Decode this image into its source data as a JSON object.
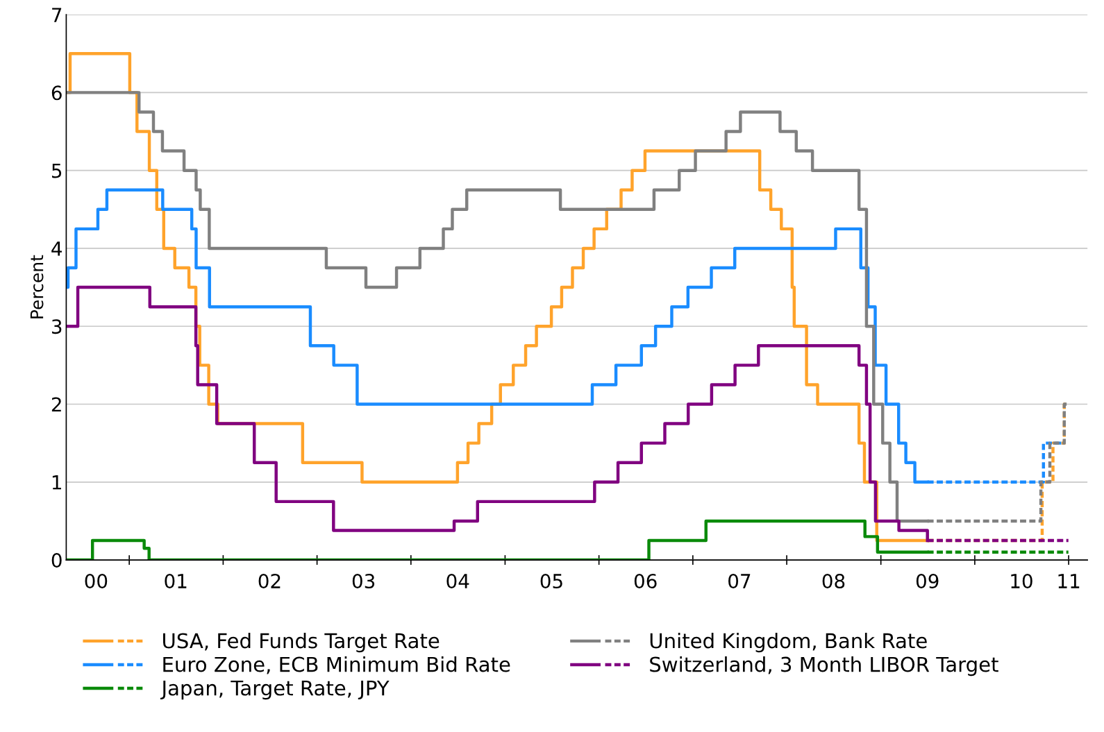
{
  "chart_data": {
    "type": "step",
    "ylabel": "Percent",
    "xlim": [
      "2000-05-01",
      "2011-03-15"
    ],
    "ylim": [
      0,
      7
    ],
    "yticks": [
      0,
      1,
      2,
      3,
      4,
      5,
      6,
      7
    ],
    "xticks": [
      {
        "value": "2001-01-01",
        "label": null
      },
      {
        "value": "2002-01-01",
        "label": null
      },
      {
        "value": "2003-01-01",
        "label": null
      },
      {
        "value": "2004-01-01",
        "label": null
      },
      {
        "value": "2005-01-01",
        "label": null
      },
      {
        "value": "2006-01-01",
        "label": null
      },
      {
        "value": "2007-01-01",
        "label": null
      },
      {
        "value": "2008-01-01",
        "label": null
      },
      {
        "value": "2009-01-01",
        "label": null
      },
      {
        "value": "2010-01-01",
        "label": null
      },
      {
        "value": "2011-01-01",
        "label": null
      },
      {
        "value": "2000-08-25",
        "label": "00"
      },
      {
        "value": "2001-07-01",
        "label": "01"
      },
      {
        "value": "2002-07-01",
        "label": "02"
      },
      {
        "value": "2003-07-01",
        "label": "03"
      },
      {
        "value": "2004-07-01",
        "label": "04"
      },
      {
        "value": "2005-07-01",
        "label": "05"
      },
      {
        "value": "2006-07-01",
        "label": "06"
      },
      {
        "value": "2007-07-01",
        "label": "07"
      },
      {
        "value": "2008-07-01",
        "label": "08"
      },
      {
        "value": "2009-07-01",
        "label": "09"
      },
      {
        "value": "2010-07-01",
        "label": "10"
      },
      {
        "value": "2011-01-01",
        "label": "11"
      }
    ],
    "grid": "y",
    "legend": "bottom",
    "series": [
      {
        "name": "USA, Fed Funds Target Rate",
        "color": "#ffa32b",
        "line_style": "solid",
        "x": [
          "2000-05-01",
          "2000-05-16",
          "2001-01-03",
          "2001-01-31",
          "2001-03-20",
          "2001-04-18",
          "2001-05-15",
          "2001-06-27",
          "2001-08-21",
          "2001-09-17",
          "2001-10-02",
          "2001-11-06",
          "2001-12-11",
          "2002-11-06",
          "2003-06-25",
          "2004-06-30",
          "2004-08-10",
          "2004-09-21",
          "2004-11-10",
          "2004-12-14",
          "2005-02-02",
          "2005-03-22",
          "2005-05-03",
          "2005-06-30",
          "2005-08-09",
          "2005-09-20",
          "2005-11-01",
          "2005-12-13",
          "2006-01-31",
          "2006-03-28",
          "2006-05-10",
          "2006-06-29",
          "2007-09-18",
          "2007-10-31",
          "2007-12-11",
          "2008-01-22",
          "2008-01-30",
          "2008-03-18",
          "2008-04-30",
          "2008-10-08",
          "2008-10-29",
          "2008-12-16",
          "2009-07-01"
        ],
        "values": [
          6,
          6.5,
          6,
          5.5,
          5,
          4.5,
          4,
          3.75,
          3.5,
          3,
          2.5,
          2,
          1.75,
          1.25,
          1,
          1.25,
          1.5,
          1.75,
          2,
          2.25,
          2.5,
          2.75,
          3,
          3.25,
          3.5,
          3.75,
          4,
          4.25,
          4.5,
          4.75,
          5,
          5.25,
          4.75,
          4.5,
          4.25,
          3.5,
          3,
          2.25,
          2,
          1.5,
          1,
          0.25,
          0.25
        ]
      },
      {
        "color": "#ffa32b",
        "line_style": "dashed",
        "x": [
          "2009-07-01",
          "2010-09-20",
          "2010-11-01",
          "2010-12-15",
          "2010-12-31"
        ],
        "values": [
          0.25,
          1,
          1.5,
          2,
          2
        ]
      },
      {
        "name": "Euro Zone, ECB Minimum Bid Rate",
        "color": "#1a8cff",
        "line_style": "solid",
        "x": [
          "2000-05-01",
          "2000-05-08",
          "2000-06-08",
          "2000-09-01",
          "2000-10-06",
          "2001-05-11",
          "2001-09-01",
          "2001-09-18",
          "2001-11-09",
          "2002-12-06",
          "2003-03-07",
          "2003-06-06",
          "2005-12-06",
          "2006-03-08",
          "2006-06-15",
          "2006-08-09",
          "2006-10-11",
          "2006-12-13",
          "2007-03-14",
          "2007-06-13",
          "2008-07-09",
          "2008-10-15",
          "2008-11-12",
          "2008-12-10",
          "2009-01-21",
          "2009-03-11",
          "2009-04-08",
          "2009-05-13",
          "2009-07-01"
        ],
        "values": [
          3.5,
          3.75,
          4.25,
          4.5,
          4.75,
          4.5,
          4.25,
          3.75,
          3.25,
          2.75,
          2.5,
          2,
          2.25,
          2.5,
          2.75,
          3,
          3.25,
          3.5,
          3.75,
          4,
          4.25,
          3.75,
          3.25,
          2.5,
          2,
          1.5,
          1.25,
          1,
          1
        ]
      },
      {
        "color": "#1a8cff",
        "line_style": "dashed",
        "x": [
          "2009-07-01",
          "2010-09-25",
          "2010-12-15"
        ],
        "values": [
          1,
          1.5,
          1.5
        ]
      },
      {
        "name": "Japan, Target Rate, JPY",
        "color": "#0a8a0a",
        "line_style": "solid",
        "x": [
          "2000-05-01",
          "2000-08-11",
          "2001-02-28",
          "2001-03-19",
          "2006-07-14",
          "2007-02-21",
          "2008-10-31",
          "2008-12-19",
          "2009-07-01"
        ],
        "values": [
          0,
          0.25,
          0.15,
          0,
          0.25,
          0.5,
          0.3,
          0.1,
          0.1
        ]
      },
      {
        "color": "#0a8a0a",
        "line_style": "dashed",
        "x": [
          "2009-07-01",
          "2010-12-31"
        ],
        "values": [
          0.1,
          0.1
        ]
      },
      {
        "name": "United Kingdom, Bank Rate",
        "color": "#808080",
        "line_style": "solid",
        "x": [
          "2000-05-01",
          "2001-02-08",
          "2001-04-05",
          "2001-05-10",
          "2001-08-02",
          "2001-09-18",
          "2001-10-04",
          "2001-11-08",
          "2003-02-06",
          "2003-07-10",
          "2003-11-06",
          "2004-02-05",
          "2004-05-06",
          "2004-06-10",
          "2004-08-05",
          "2005-08-04",
          "2006-08-03",
          "2006-11-09",
          "2007-01-11",
          "2007-05-10",
          "2007-07-05",
          "2007-12-06",
          "2008-02-07",
          "2008-04-10",
          "2008-10-08",
          "2008-11-06",
          "2008-12-04",
          "2009-01-08",
          "2009-02-05",
          "2009-03-05",
          "2009-07-01"
        ],
        "values": [
          6,
          5.75,
          5.5,
          5.25,
          5,
          4.75,
          4.5,
          4,
          3.75,
          3.5,
          3.75,
          4,
          4.25,
          4.5,
          4.75,
          4.5,
          4.75,
          5,
          5.25,
          5.5,
          5.75,
          5.5,
          5.25,
          5,
          4.5,
          3,
          2,
          1.5,
          1,
          0.5,
          0.5
        ]
      },
      {
        "color": "#808080",
        "line_style": "dashed",
        "x": [
          "2009-07-01",
          "2010-09-15",
          "2010-10-20",
          "2010-12-15",
          "2010-12-31"
        ],
        "values": [
          0.5,
          1,
          1.5,
          2,
          2
        ]
      },
      {
        "name": "Switzerland, 3 Month LIBOR Target",
        "color": "#800080",
        "line_style": "solid",
        "x": [
          "2000-05-01",
          "2000-06-15",
          "2001-03-22",
          "2001-09-17",
          "2001-09-24",
          "2001-12-07",
          "2002-05-02",
          "2002-07-26",
          "2003-03-06",
          "2004-06-17",
          "2004-09-16",
          "2005-12-15",
          "2006-03-16",
          "2006-06-15",
          "2006-09-14",
          "2006-12-14",
          "2007-03-15",
          "2007-06-14",
          "2007-09-13",
          "2008-10-08",
          "2008-11-06",
          "2008-11-20",
          "2008-12-11",
          "2009-03-12",
          "2009-07-01"
        ],
        "values": [
          3,
          3.5,
          3.25,
          2.75,
          2.25,
          1.75,
          1.25,
          0.75,
          0.38,
          0.5,
          0.75,
          1,
          1.25,
          1.5,
          1.75,
          2,
          2.25,
          2.5,
          2.75,
          2.5,
          2,
          1,
          0.5,
          0.38,
          0.25
        ]
      },
      {
        "color": "#800080",
        "line_style": "dashed",
        "x": [
          "2009-07-01",
          "2010-12-31"
        ],
        "values": [
          0.25,
          0.25
        ]
      }
    ]
  }
}
